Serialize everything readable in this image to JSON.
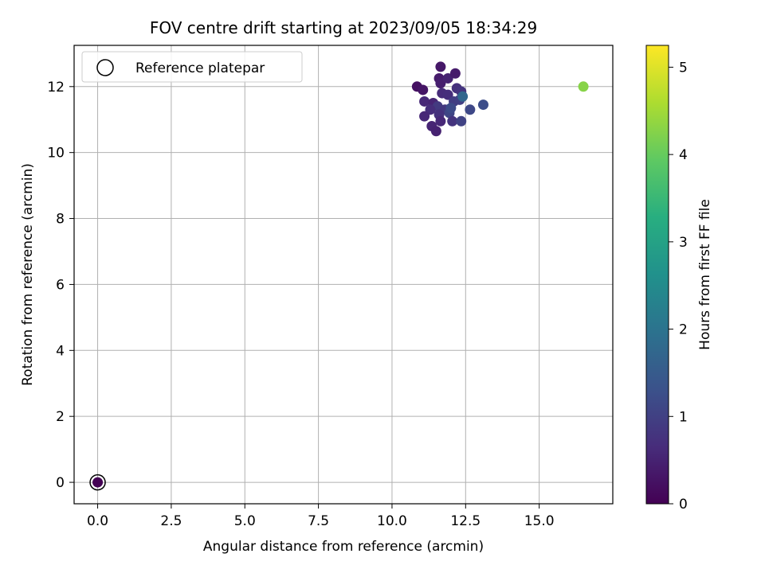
{
  "chart_data": {
    "type": "scatter",
    "title": "FOV centre drift starting at 2023/09/05 18:34:29",
    "xlabel": "Angular distance from reference (arcmin)",
    "ylabel": "Rotation from reference (arcmin)",
    "xlim": [
      -0.8,
      17.5
    ],
    "ylim": [
      -0.65,
      13.25
    ],
    "xticks": [
      "0.0",
      "2.5",
      "5.0",
      "7.5",
      "10.0",
      "12.5",
      "15.0"
    ],
    "xtick_values": [
      0,
      2.5,
      5,
      7.5,
      10,
      12.5,
      15
    ],
    "yticks": [
      "0",
      "2",
      "4",
      "6",
      "8",
      "10",
      "12"
    ],
    "ytick_values": [
      0,
      2,
      4,
      6,
      8,
      10,
      12
    ],
    "grid": true,
    "legend": {
      "placement": "top-left",
      "label": "Reference platepar"
    },
    "colorbar": {
      "label": "Hours from first FF file",
      "colormap": "viridis",
      "range": [
        0,
        5.25
      ],
      "ticks": [
        "0",
        "1",
        "2",
        "3",
        "4",
        "5"
      ],
      "tick_values": [
        0,
        1,
        2,
        3,
        4,
        5
      ]
    },
    "reference_point": {
      "x": 0,
      "y": 0,
      "hours": 0
    },
    "points": [
      {
        "x": 0.0,
        "y": 0.0,
        "hours": 0.0
      },
      {
        "x": 11.65,
        "y": 12.6,
        "hours": 0.35
      },
      {
        "x": 10.85,
        "y": 12.0,
        "hours": 0.25
      },
      {
        "x": 11.05,
        "y": 11.9,
        "hours": 0.3
      },
      {
        "x": 11.6,
        "y": 12.25,
        "hours": 0.4
      },
      {
        "x": 11.65,
        "y": 12.1,
        "hours": 0.45
      },
      {
        "x": 11.9,
        "y": 12.25,
        "hours": 0.5
      },
      {
        "x": 12.15,
        "y": 12.4,
        "hours": 0.4
      },
      {
        "x": 11.1,
        "y": 11.55,
        "hours": 0.6
      },
      {
        "x": 11.4,
        "y": 11.5,
        "hours": 0.55
      },
      {
        "x": 11.7,
        "y": 11.8,
        "hours": 0.65
      },
      {
        "x": 11.9,
        "y": 11.75,
        "hours": 0.7
      },
      {
        "x": 12.2,
        "y": 11.95,
        "hours": 0.75
      },
      {
        "x": 12.35,
        "y": 11.85,
        "hours": 0.8
      },
      {
        "x": 11.55,
        "y": 11.4,
        "hours": 0.9
      },
      {
        "x": 11.8,
        "y": 11.3,
        "hours": 0.85
      },
      {
        "x": 12.1,
        "y": 11.55,
        "hours": 0.95
      },
      {
        "x": 12.3,
        "y": 11.6,
        "hours": 1.0
      },
      {
        "x": 11.3,
        "y": 11.3,
        "hours": 0.7
      },
      {
        "x": 11.6,
        "y": 11.15,
        "hours": 0.75
      },
      {
        "x": 11.1,
        "y": 11.1,
        "hours": 0.6
      },
      {
        "x": 11.95,
        "y": 11.2,
        "hours": 1.1
      },
      {
        "x": 12.0,
        "y": 11.35,
        "hours": 1.2
      },
      {
        "x": 11.35,
        "y": 10.8,
        "hours": 0.55
      },
      {
        "x": 11.5,
        "y": 10.65,
        "hours": 0.5
      },
      {
        "x": 11.65,
        "y": 10.95,
        "hours": 0.6
      },
      {
        "x": 12.05,
        "y": 10.95,
        "hours": 0.8
      },
      {
        "x": 12.35,
        "y": 10.95,
        "hours": 1.05
      },
      {
        "x": 12.65,
        "y": 11.3,
        "hours": 1.15
      },
      {
        "x": 13.1,
        "y": 11.45,
        "hours": 1.25
      },
      {
        "x": 12.4,
        "y": 11.7,
        "hours": 1.75
      },
      {
        "x": 16.5,
        "y": 12.0,
        "hours": 4.3
      }
    ]
  }
}
